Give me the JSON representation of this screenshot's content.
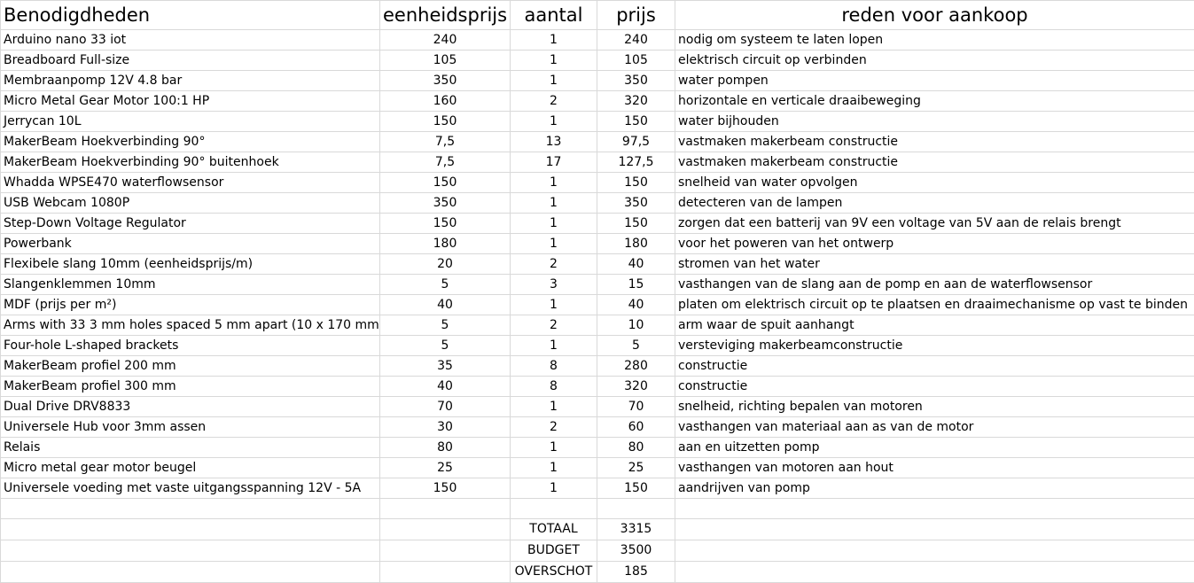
{
  "header": {
    "col1": "Benodigdheden",
    "col2": "eenheidsprijs",
    "col3": "aantal",
    "col4": "prijs",
    "col5": "reden voor aankoop"
  },
  "items": [
    {
      "name": "Arduino nano 33 iot",
      "unit_price": "240",
      "qty": "1",
      "price": "240",
      "reason": "nodig om systeem te laten lopen"
    },
    {
      "name": "Breadboard Full-size",
      "unit_price": "105",
      "qty": "1",
      "price": "105",
      "reason": "elektrisch circuit op verbinden"
    },
    {
      "name": "Membraanpomp 12V 4.8 bar",
      "unit_price": "350",
      "qty": "1",
      "price": "350",
      "reason": "water pompen"
    },
    {
      "name": "Micro Metal Gear Motor 100:1 HP",
      "unit_price": "160",
      "qty": "2",
      "price": "320",
      "reason": "horizontale en verticale draaibeweging"
    },
    {
      "name": "Jerrycan 10L",
      "unit_price": "150",
      "qty": "1",
      "price": "150",
      "reason": "water bijhouden"
    },
    {
      "name": "MakerBeam Hoekverbinding 90°",
      "unit_price": "7,5",
      "qty": "13",
      "price": "97,5",
      "reason": "vastmaken makerbeam constructie"
    },
    {
      "name": "MakerBeam Hoekverbinding 90° buitenhoek",
      "unit_price": "7,5",
      "qty": "17",
      "price": "127,5",
      "reason": "vastmaken makerbeam constructie"
    },
    {
      "name": "Whadda WPSE470 waterflowsensor",
      "unit_price": "150",
      "qty": "1",
      "price": "150",
      "reason": "snelheid van water opvolgen"
    },
    {
      "name": "USB Webcam 1080P",
      "unit_price": "350",
      "qty": "1",
      "price": "350",
      "reason": "detecteren van de lampen"
    },
    {
      "name": "Step-Down Voltage Regulator",
      "unit_price": "150",
      "qty": "1",
      "price": "150",
      "reason": "zorgen dat een batterij van 9V een voltage van 5V aan de relais brengt"
    },
    {
      "name": "Powerbank",
      "unit_price": "180",
      "qty": "1",
      "price": "180",
      "reason": "voor het poweren van het ontwerp"
    },
    {
      "name": "Flexibele slang 10mm (eenheidsprijs/m)",
      "unit_price": "20",
      "qty": "2",
      "price": "40",
      "reason": "stromen van het water"
    },
    {
      "name": "Slangenklemmen 10mm",
      "unit_price": "5",
      "qty": "3",
      "price": "15",
      "reason": "vasthangen van de slang aan de pomp en aan de waterflowsensor"
    },
    {
      "name": "MDF (prijs per m²)",
      "unit_price": "40",
      "qty": "1",
      "price": "40",
      "reason": "platen om elektrisch circuit op te plaatsen en draaimechanisme op vast te binden"
    },
    {
      "name": "Arms with 33 3 mm holes spaced 5 mm apart (10 x 170 mm)",
      "unit_price": "5",
      "qty": "2",
      "price": "10",
      "reason": "arm waar de spuit aanhangt"
    },
    {
      "name": "Four-hole L-shaped brackets",
      "unit_price": "5",
      "qty": "1",
      "price": "5",
      "reason": "versteviging makerbeamconstructie"
    },
    {
      "name": "MakerBeam profiel 200 mm",
      "unit_price": "35",
      "qty": "8",
      "price": "280",
      "reason": "constructie"
    },
    {
      "name": "MakerBeam profiel 300 mm",
      "unit_price": "40",
      "qty": "8",
      "price": "320",
      "reason": "constructie"
    },
    {
      "name": "Dual Drive DRV8833",
      "unit_price": "70",
      "qty": "1",
      "price": "70",
      "reason": "snelheid, richting bepalen van motoren"
    },
    {
      "name": "Universele Hub voor 3mm assen",
      "unit_price": "30",
      "qty": "2",
      "price": "60",
      "reason": "vasthangen van materiaal aan as van de motor"
    },
    {
      "name": "Relais",
      "unit_price": "80",
      "qty": "1",
      "price": "80",
      "reason": "aan en uitzetten pomp"
    },
    {
      "name": "Micro metal gear motor beugel",
      "unit_price": "25",
      "qty": "1",
      "price": "25",
      "reason": "vasthangen van motoren aan hout"
    },
    {
      "name": "Universele voeding met vaste uitgangsspanning 12V - 5A",
      "unit_price": "150",
      "qty": "1",
      "price": "150",
      "reason": "aandrijven van pomp"
    }
  ],
  "summary": {
    "total_label": "TOTAAL",
    "total_value": "3315",
    "budget_label": "BUDGET",
    "budget_value": "3500",
    "surplus_label": "OVERSCHOT",
    "surplus_value": "185"
  }
}
